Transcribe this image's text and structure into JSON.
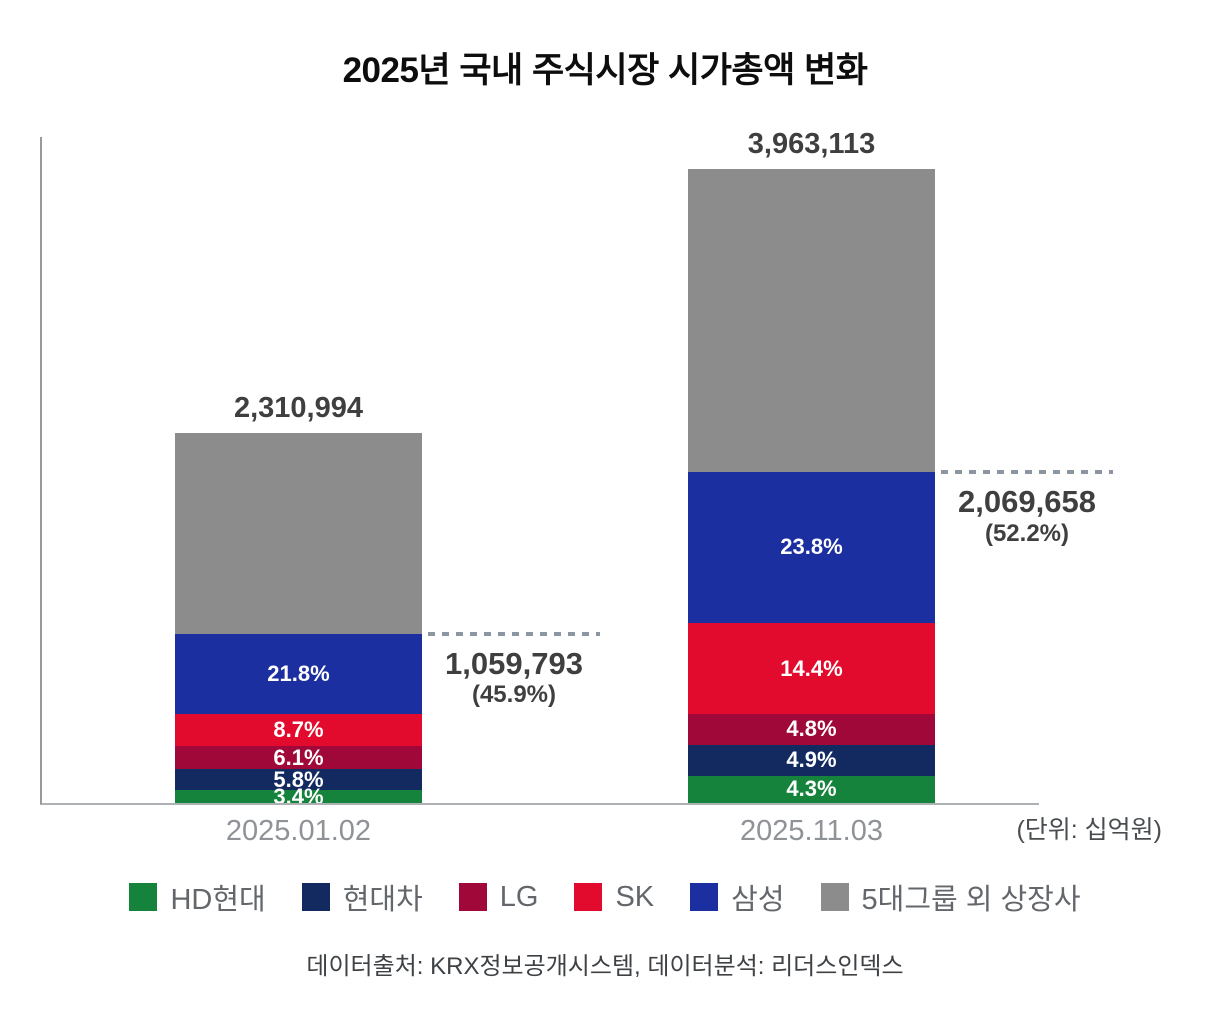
{
  "title": "2025년 국내 주식시장 시가총액 변화",
  "unit_note": "(단위: 십억원)",
  "footer": "데이터출처: KRX정보공개시스템, 데이터분석: 리더스인덱스",
  "colors": {
    "hd_hyundai": "#15833B",
    "hyundai_motor": "#132A61",
    "lg": "#A1083A",
    "sk": "#E30B2D",
    "samsung": "#1C2FA0",
    "others": "#8C8C8C",
    "dotted_line": "#8C96A3",
    "value_text": "#3F3F3F",
    "axis": "#97999C"
  },
  "chart_data": {
    "type": "bar",
    "stacked": true,
    "title": "2025년 국내 주식시장 시가총액 변화",
    "unit": "십억원",
    "categories": [
      "2025.01.02",
      "2025.11.03"
    ],
    "totals": [
      2310994,
      3963113
    ],
    "total_labels": [
      "2,310,994",
      "3,963,113"
    ],
    "series": [
      {
        "name": "HD현대",
        "color": "#15833B",
        "pct": [
          3.4,
          4.3
        ]
      },
      {
        "name": "현대차",
        "color": "#132A61",
        "pct": [
          5.8,
          4.9
        ]
      },
      {
        "name": "LG",
        "color": "#A1083A",
        "pct": [
          6.1,
          4.8
        ]
      },
      {
        "name": "SK",
        "color": "#E30B2D",
        "pct": [
          8.7,
          14.4
        ]
      },
      {
        "name": "삼성",
        "color": "#1C2FA0",
        "pct": [
          21.8,
          23.8
        ]
      }
    ],
    "remainder_series": {
      "name": "5대그룹 외 상장사",
      "color": "#8C8C8C"
    },
    "annotations": [
      {
        "value_label": "1,059,793",
        "pct_label": "(45.9%)"
      },
      {
        "value_label": "2,069,658",
        "pct_label": "(52.2%)"
      }
    ],
    "legend_position": "bottom",
    "grid": false
  },
  "legend": {
    "items": [
      {
        "label": "HD현대",
        "color": "#15833B"
      },
      {
        "label": "현대차",
        "color": "#132A61"
      },
      {
        "label": "LG",
        "color": "#A1083A"
      },
      {
        "label": "SK",
        "color": "#E30B2D"
      },
      {
        "label": "삼성",
        "color": "#1C2FA0"
      },
      {
        "label": "5대그룹 외 상장사",
        "color": "#8C8C8C"
      }
    ]
  }
}
